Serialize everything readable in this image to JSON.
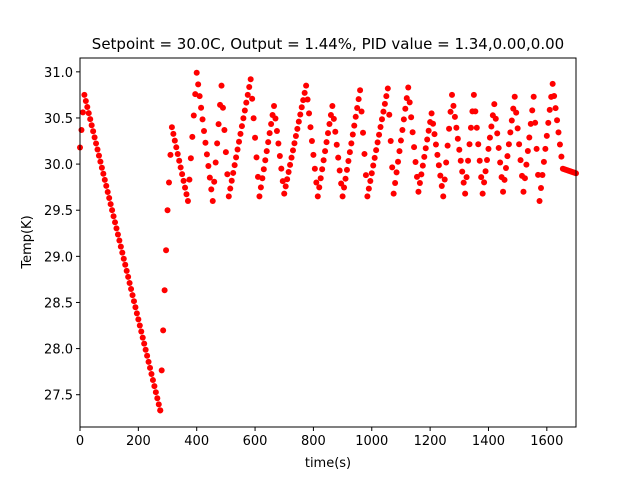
{
  "chart_data": {
    "type": "scatter",
    "title": "Setpoint = 30.0C, Output = 1.44%, PID value = 1.34,0.00,0.00",
    "xlabel": "time(s)",
    "ylabel": "Temp(K)",
    "xlim": [
      0,
      1700
    ],
    "ylim": [
      27.15,
      31.15
    ],
    "xticks": [
      0,
      200,
      400,
      600,
      800,
      1000,
      1200,
      1400,
      1600
    ],
    "xtick_labels": [
      "0",
      "200",
      "400",
      "600",
      "800",
      "1000",
      "1200",
      "1400",
      "1600"
    ],
    "yticks": [
      27.5,
      28.0,
      28.5,
      29.0,
      29.5,
      30.0,
      30.5,
      31.0
    ],
    "ytick_labels": [
      "27.5",
      "28.0",
      "28.5",
      "29.0",
      "29.5",
      "30.0",
      "30.5",
      "31.0"
    ],
    "grid": false,
    "marker_color": "#ff0000",
    "sample_interval_s": 5,
    "segments": [
      {
        "x": [
          0,
          15,
          275
        ],
        "y": [
          30.18,
          30.75,
          27.33
        ]
      },
      {
        "x": [
          275,
          300,
          315,
          370,
          400,
          455,
          485,
          510,
          585,
          615,
          665,
          700,
          775,
          815,
          865,
          900,
          960,
          985,
          1055,
          1075,
          1125,
          1160,
          1205,
          1245,
          1275,
          1320,
          1350,
          1380,
          1420,
          1450,
          1490,
          1520,
          1555,
          1575,
          1620,
          1655,
          1700
        ],
        "y": [
          27.33,
          29.5,
          30.4,
          29.6,
          30.99,
          29.6,
          30.85,
          29.65,
          30.92,
          29.65,
          30.63,
          29.68,
          30.85,
          29.65,
          30.63,
          29.65,
          30.8,
          29.65,
          30.82,
          29.68,
          30.83,
          29.7,
          30.55,
          29.65,
          30.75,
          29.68,
          30.75,
          29.68,
          30.65,
          29.7,
          30.73,
          29.7,
          30.73,
          29.6,
          30.87,
          29.95,
          29.9
        ]
      }
    ]
  }
}
